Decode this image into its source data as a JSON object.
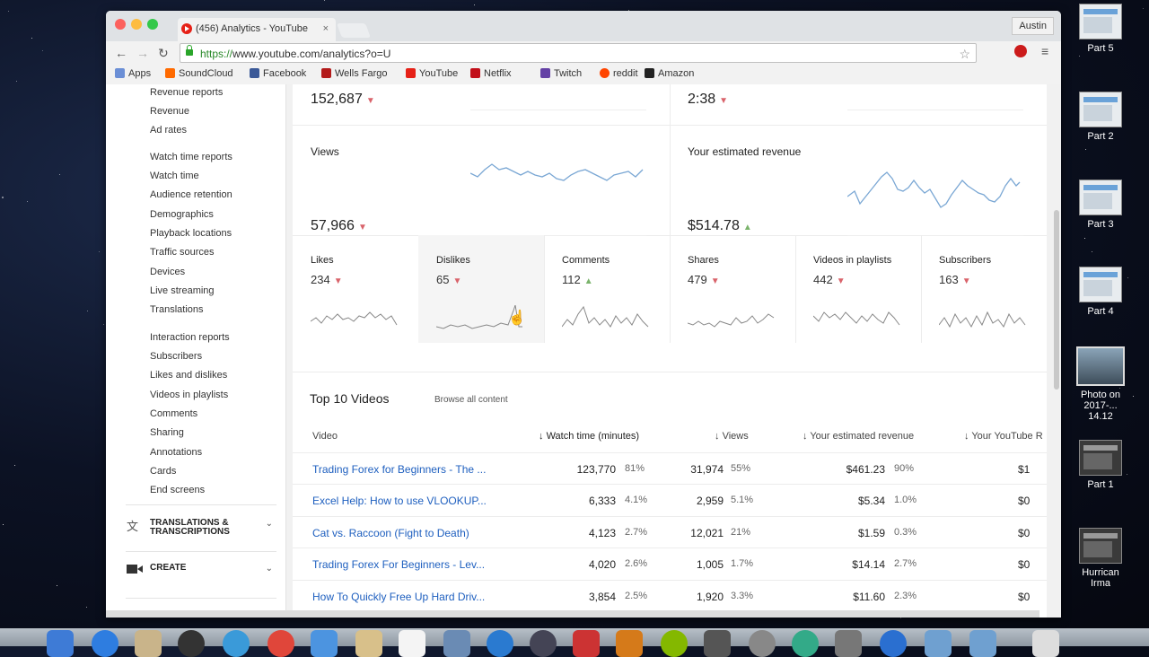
{
  "browser": {
    "tab_title": "(456) Analytics - YouTube",
    "tab_close": "×",
    "profile_name": "Austin",
    "url_scheme": "https://",
    "url_rest": "www.youtube.com/analytics?o=U",
    "back": "←",
    "forward": "→",
    "reload": "↻",
    "star": "☆",
    "menu": "≡"
  },
  "bookmarks": [
    {
      "label": "Apps",
      "color": "#6b8fd6"
    },
    {
      "label": "SoundCloud",
      "color": "#ff6a00"
    },
    {
      "label": "Facebook",
      "color": "#3b5998"
    },
    {
      "label": "Wells Fargo",
      "color": "#b31b1b"
    },
    {
      "label": "YouTube",
      "color": "#e62117"
    },
    {
      "label": "Netflix",
      "color": "#c20f1a"
    },
    {
      "label": "Twitch",
      "color": "#6441a5"
    },
    {
      "label": "reddit",
      "color": "#ff4500"
    },
    {
      "label": "Amazon",
      "color": "#222222"
    }
  ],
  "sidebar": {
    "items": [
      "Revenue reports",
      "Revenue",
      "Ad rates",
      "Watch time reports",
      "Watch time",
      "Audience retention",
      "Demographics",
      "Playback locations",
      "Traffic sources",
      "Devices",
      "Live streaming",
      "Translations",
      "Interaction reports",
      "Subscribers",
      "Likes and dislikes",
      "Videos in playlists",
      "Comments",
      "Sharing",
      "Annotations",
      "Cards",
      "End screens"
    ],
    "sections": [
      {
        "label": "TRANSLATIONS & TRANSCRIPTIONS",
        "icon": "translate-icon",
        "chevron": "⌄"
      },
      {
        "label": "CREATE",
        "icon": "video-camera-icon",
        "chevron": "⌄"
      }
    ]
  },
  "summary": {
    "top_left_value": "152,687",
    "top_right_value": "2:38",
    "views_title": "Views",
    "views_value": "57,966",
    "revenue_title": "Your estimated revenue",
    "revenue_value": "$514.78",
    "down_arrow": "▼",
    "up_arrow": "▲"
  },
  "metrics": [
    {
      "title": "Likes",
      "value": "234",
      "trend": "down"
    },
    {
      "title": "Dislikes",
      "value": "65",
      "trend": "down"
    },
    {
      "title": "Comments",
      "value": "112",
      "trend": "up"
    },
    {
      "title": "Shares",
      "value": "479",
      "trend": "down"
    },
    {
      "title": "Videos in playlists",
      "value": "442",
      "trend": "down"
    },
    {
      "title": "Subscribers",
      "value": "163",
      "trend": "down"
    }
  ],
  "top_videos": {
    "title": "Top 10 Videos",
    "browse_link": "Browse all content",
    "headers": {
      "video": "Video",
      "watch_time": "Watch time (minutes)",
      "views": "Views",
      "revenue": "Your estimated revenue",
      "youtube_red": "Your YouTube R"
    },
    "sort_arrow": "↓",
    "rows": [
      {
        "title": "Trading Forex for Beginners - The ...",
        "watch": "123,770",
        "watch_pct": "81%",
        "views": "31,974",
        "views_pct": "55%",
        "revenue": "$461.23",
        "revenue_pct": "90%",
        "red": "$1"
      },
      {
        "title": "Excel Help: How to use VLOOKUP...",
        "watch": "6,333",
        "watch_pct": "4.1%",
        "views": "2,959",
        "views_pct": "5.1%",
        "revenue": "$5.34",
        "revenue_pct": "1.0%",
        "red": "$0"
      },
      {
        "title": "Cat vs. Raccoon (Fight to Death)",
        "watch": "4,123",
        "watch_pct": "2.7%",
        "views": "12,021",
        "views_pct": "21%",
        "revenue": "$1.59",
        "revenue_pct": "0.3%",
        "red": "$0"
      },
      {
        "title": "Trading Forex For Beginners - Lev...",
        "watch": "4,020",
        "watch_pct": "2.6%",
        "views": "1,005",
        "views_pct": "1.7%",
        "revenue": "$14.14",
        "revenue_pct": "2.7%",
        "red": "$0"
      },
      {
        "title": "How To Quickly Free Up Hard Driv...",
        "watch": "3,854",
        "watch_pct": "2.5%",
        "views": "1,920",
        "views_pct": "3.3%",
        "revenue": "$11.60",
        "revenue_pct": "2.3%",
        "red": "$0"
      }
    ]
  },
  "desktop_icons": [
    {
      "label": "Part 5"
    },
    {
      "label": "Part 2"
    },
    {
      "label": "Part 3"
    },
    {
      "label": "Part 4"
    },
    {
      "label": "Photo on 2017-... 14.12"
    },
    {
      "label": "Part 1"
    },
    {
      "label": "Hurrican Irma"
    }
  ],
  "colors": {
    "link": "#1e5fbf",
    "trend_down": "#d9636b",
    "trend_up": "#7ab36b",
    "sparkline": "#7aa7d4"
  }
}
